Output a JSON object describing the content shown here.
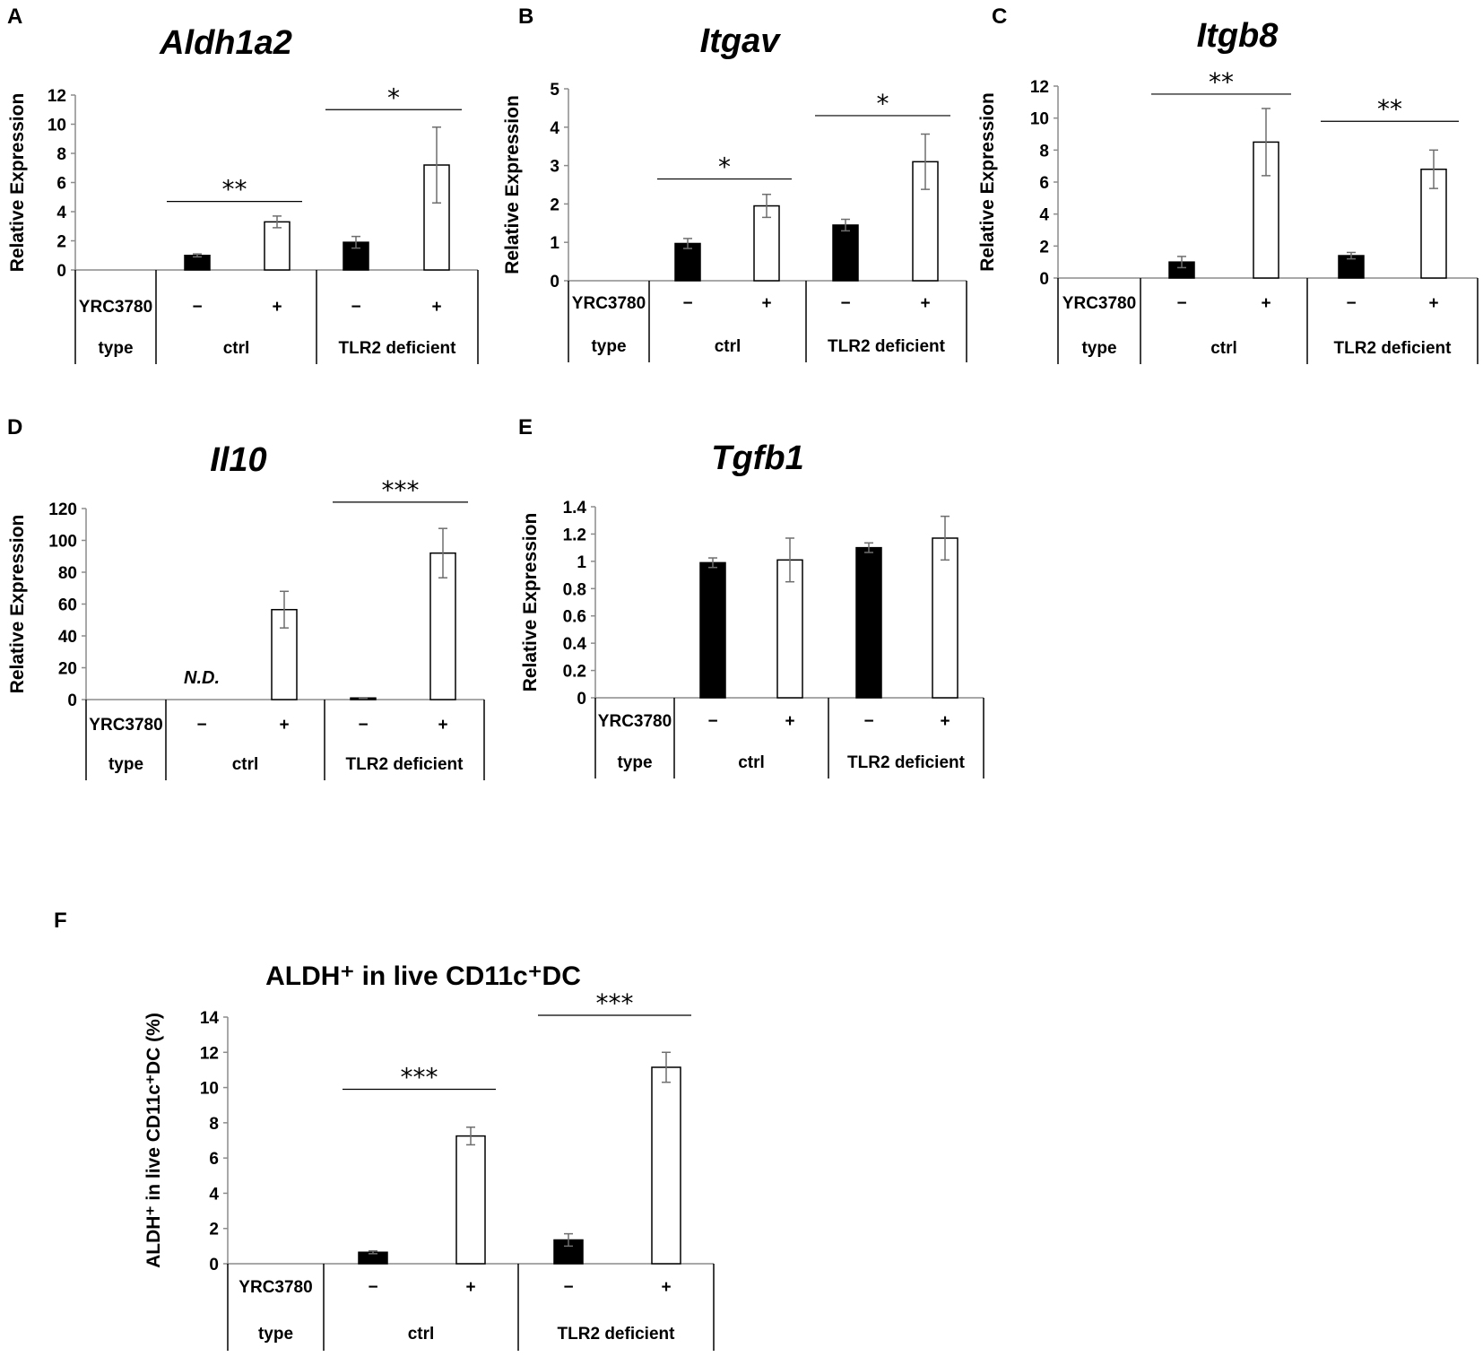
{
  "figure": {
    "panel_labels": [
      "A",
      "B",
      "C",
      "D",
      "E",
      "F"
    ]
  },
  "chart_data": [
    {
      "panel": "A",
      "type": "bar",
      "title": "Aldh1a2",
      "ylabel": "Relative Expression",
      "ylim": [
        0,
        12
      ],
      "yticks": [
        0,
        2,
        4,
        6,
        8,
        10,
        12
      ],
      "yticklabels": [
        "0",
        "2",
        "4",
        "6",
        "8",
        "10",
        "12"
      ],
      "categories": [
        "ctrl -",
        "ctrl +",
        "TLR2 deficient -",
        "TLR2 deficient +"
      ],
      "values": [
        1.0,
        3.3,
        1.9,
        7.2
      ],
      "errors": [
        0.1,
        0.4,
        0.4,
        2.6
      ],
      "fills": [
        "#000000",
        "#ffffff",
        "#000000",
        "#ffffff"
      ],
      "table": {
        "row1_label": "YRC3780",
        "row2_label": "type",
        "treatment": [
          "−",
          "+",
          "−",
          "+"
        ],
        "groups": [
          "ctrl",
          "TLR2 deficient"
        ]
      },
      "significance": [
        {
          "from": 0,
          "to": 1,
          "label": "**",
          "y": 4.7
        },
        {
          "from": 2,
          "to": 3,
          "label": "*",
          "y": 11.0
        }
      ],
      "annotations": []
    },
    {
      "panel": "B",
      "type": "bar",
      "title": "Itgav",
      "ylabel": "Relative Expression",
      "ylim": [
        0,
        5
      ],
      "yticks": [
        0,
        1,
        2,
        3,
        4,
        5
      ],
      "yticklabels": [
        "0",
        "1",
        "2",
        "3",
        "4",
        "5"
      ],
      "categories": [
        "ctrl -",
        "ctrl +",
        "TLR2 deficient -",
        "TLR2 deficient +"
      ],
      "values": [
        0.97,
        1.95,
        1.45,
        3.1
      ],
      "errors": [
        0.13,
        0.3,
        0.15,
        0.72
      ],
      "fills": [
        "#000000",
        "#ffffff",
        "#000000",
        "#ffffff"
      ],
      "table": {
        "row1_label": "YRC3780",
        "row2_label": "type",
        "treatment": [
          "−",
          "+",
          "−",
          "+"
        ],
        "groups": [
          "ctrl",
          "TLR2 deficient"
        ]
      },
      "significance": [
        {
          "from": 0,
          "to": 1,
          "label": "*",
          "y": 2.65
        },
        {
          "from": 2,
          "to": 3,
          "label": "*",
          "y": 4.3
        }
      ],
      "annotations": []
    },
    {
      "panel": "C",
      "type": "bar",
      "title": "Itgb8",
      "ylabel": "Relative Expression",
      "ylim": [
        0,
        12
      ],
      "yticks": [
        0,
        2,
        4,
        6,
        8,
        10,
        12
      ],
      "yticklabels": [
        "0",
        "2",
        "4",
        "6",
        "8",
        "10",
        "12"
      ],
      "categories": [
        "ctrl -",
        "ctrl +",
        "TLR2 deficient -",
        "TLR2 deficient +"
      ],
      "values": [
        1.0,
        8.5,
        1.4,
        6.8
      ],
      "errors": [
        0.35,
        2.1,
        0.2,
        1.2
      ],
      "fills": [
        "#000000",
        "#ffffff",
        "#000000",
        "#ffffff"
      ],
      "table": {
        "row1_label": "YRC3780",
        "row2_label": "type",
        "treatment": [
          "−",
          "+",
          "−",
          "+"
        ],
        "groups": [
          "ctrl",
          "TLR2 deficient"
        ]
      },
      "significance": [
        {
          "from": 0,
          "to": 1,
          "label": "**",
          "y": 11.5
        },
        {
          "from": 2,
          "to": 3,
          "label": "**",
          "y": 9.8
        }
      ],
      "annotations": []
    },
    {
      "panel": "D",
      "type": "bar",
      "title": "Il10",
      "ylabel": "Relative Expression",
      "ylim": [
        0,
        120
      ],
      "yticks": [
        0,
        20,
        40,
        60,
        80,
        100,
        120
      ],
      "yticklabels": [
        "0",
        "20",
        "40",
        "60",
        "80",
        "100",
        "120"
      ],
      "categories": [
        "ctrl -",
        "ctrl +",
        "TLR2 deficient -",
        "TLR2 deficient +"
      ],
      "values": [
        null,
        56.5,
        1.0,
        92.0
      ],
      "errors": [
        null,
        11.5,
        0.2,
        15.5
      ],
      "fills": [
        "#000000",
        "#ffffff",
        "#000000",
        "#ffffff"
      ],
      "table": {
        "row1_label": "YRC3780",
        "row2_label": "type",
        "treatment": [
          "−",
          "+",
          "−",
          "+"
        ],
        "groups": [
          "ctrl",
          "TLR2 deficient"
        ]
      },
      "significance": [
        {
          "from": 2,
          "to": 3,
          "label": "***",
          "y": 124
        }
      ],
      "annotations": [
        {
          "bar": 0,
          "text": "N.D."
        }
      ]
    },
    {
      "panel": "E",
      "type": "bar",
      "title": "Tgfb1",
      "ylabel": "Relative Expression",
      "ylim": [
        0,
        1.4
      ],
      "yticks": [
        0,
        0.2,
        0.4,
        0.6,
        0.8,
        1.0,
        1.2,
        1.4
      ],
      "yticklabels": [
        "0",
        "0.2",
        "0.4",
        "0.6",
        "0.8",
        "1",
        "1.2",
        "1.4"
      ],
      "categories": [
        "ctrl -",
        "ctrl +",
        "TLR2 deficient -",
        "TLR2 deficient +"
      ],
      "values": [
        0.99,
        1.01,
        1.1,
        1.17
      ],
      "errors": [
        0.035,
        0.16,
        0.035,
        0.16
      ],
      "fills": [
        "#000000",
        "#ffffff",
        "#000000",
        "#ffffff"
      ],
      "table": {
        "row1_label": "YRC3780",
        "row2_label": "type",
        "treatment": [
          "−",
          "+",
          "−",
          "+"
        ],
        "groups": [
          "ctrl",
          "TLR2 deficient"
        ]
      },
      "significance": [],
      "annotations": []
    },
    {
      "panel": "F",
      "type": "bar",
      "title": "ALDH⁺ in live CD11c⁺DC",
      "ylabel": "ALDH⁺ in live CD11c⁺DC (%)",
      "ylim": [
        0,
        14
      ],
      "yticks": [
        0,
        2,
        4,
        6,
        8,
        10,
        12,
        14
      ],
      "yticklabels": [
        "0",
        "2",
        "4",
        "6",
        "8",
        "10",
        "12",
        "14"
      ],
      "categories": [
        "ctrl -",
        "ctrl +",
        "TLR2 deficient -",
        "TLR2 deficient +"
      ],
      "values": [
        0.65,
        7.25,
        1.35,
        11.15
      ],
      "errors": [
        0.08,
        0.5,
        0.35,
        0.85
      ],
      "fills": [
        "#000000",
        "#ffffff",
        "#000000",
        "#ffffff"
      ],
      "table": {
        "row1_label": "YRC3780",
        "row2_label": "type",
        "treatment": [
          "−",
          "+",
          "−",
          "+"
        ],
        "groups": [
          "ctrl",
          "TLR2 deficient"
        ]
      },
      "significance": [
        {
          "from": 0,
          "to": 1,
          "label": "***",
          "y": 9.9
        },
        {
          "from": 2,
          "to": 3,
          "label": "***",
          "y": 14.1
        }
      ],
      "annotations": []
    }
  ]
}
